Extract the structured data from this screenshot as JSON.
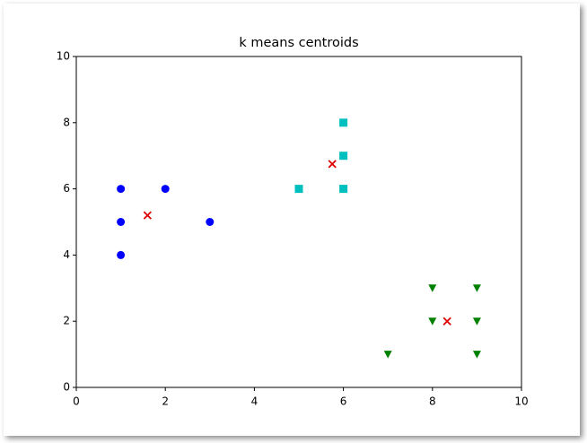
{
  "chart_data": {
    "type": "scatter",
    "title": "k means centroids",
    "xlim": [
      0,
      10
    ],
    "ylim": [
      0,
      10
    ],
    "xticks": [
      0,
      2,
      4,
      6,
      8,
      10
    ],
    "yticks": [
      0,
      2,
      4,
      6,
      8,
      10
    ],
    "series": [
      {
        "color": "#0000ff",
        "marker": "o",
        "x": [
          1,
          1,
          1,
          2,
          3
        ],
        "values": [
          6,
          5,
          4,
          6,
          5
        ]
      },
      {
        "color": "#00bfbf",
        "marker": "s",
        "x": [
          5,
          6,
          6,
          6
        ],
        "values": [
          6,
          8,
          7,
          6
        ]
      },
      {
        "color": "#008000",
        "marker": "v",
        "x": [
          7,
          8,
          8,
          9,
          9,
          9
        ],
        "values": [
          1,
          3,
          2,
          3,
          2,
          1
        ]
      },
      {
        "color": "#e00000",
        "marker": "x",
        "x": [
          1.6,
          5.75,
          8.33
        ],
        "values": [
          5.2,
          6.75,
          2
        ]
      }
    ]
  }
}
